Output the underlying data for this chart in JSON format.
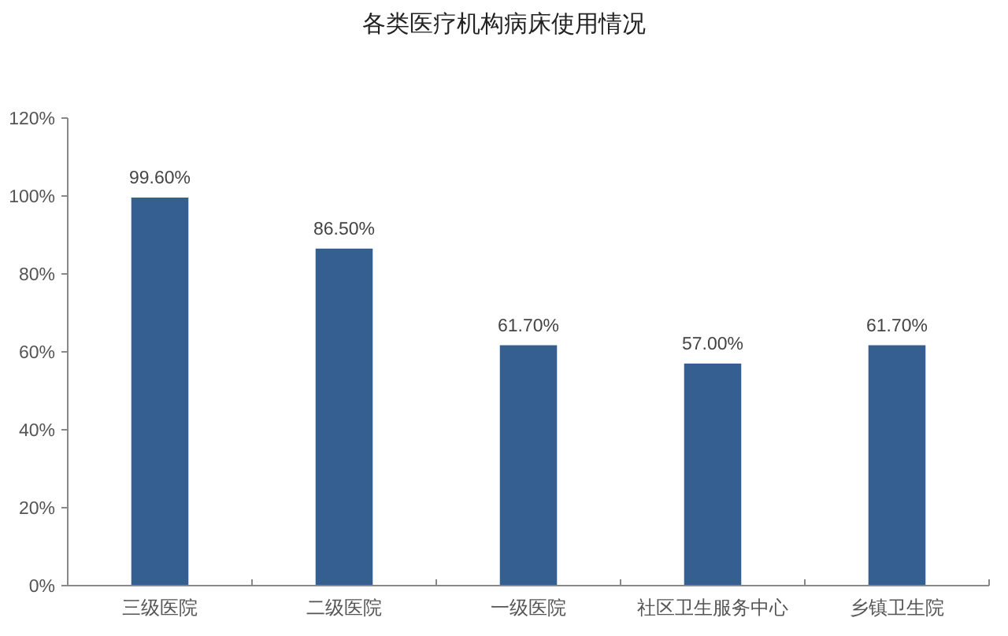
{
  "chart_data": {
    "type": "bar",
    "title": "各类医疗机构病床使用情况",
    "categories": [
      "三级医院",
      "二级医院",
      "一级医院",
      "社区卫生服务中心",
      "乡镇卫生院"
    ],
    "values": [
      99.6,
      86.5,
      61.7,
      57.0,
      61.7
    ],
    "value_labels": [
      "99.60%",
      "86.50%",
      "61.70%",
      "57.00%",
      "61.70%"
    ],
    "color": "#365f91",
    "ylim": [
      0,
      120
    ],
    "yticks": [
      {
        "value": 0,
        "label": "0%"
      },
      {
        "value": 20,
        "label": "20%"
      },
      {
        "value": 40,
        "label": "40%"
      },
      {
        "value": 60,
        "label": "60%"
      },
      {
        "value": 80,
        "label": "80%"
      },
      {
        "value": 100,
        "label": "100%"
      },
      {
        "value": 120,
        "label": "120%"
      }
    ],
    "grid": false
  }
}
